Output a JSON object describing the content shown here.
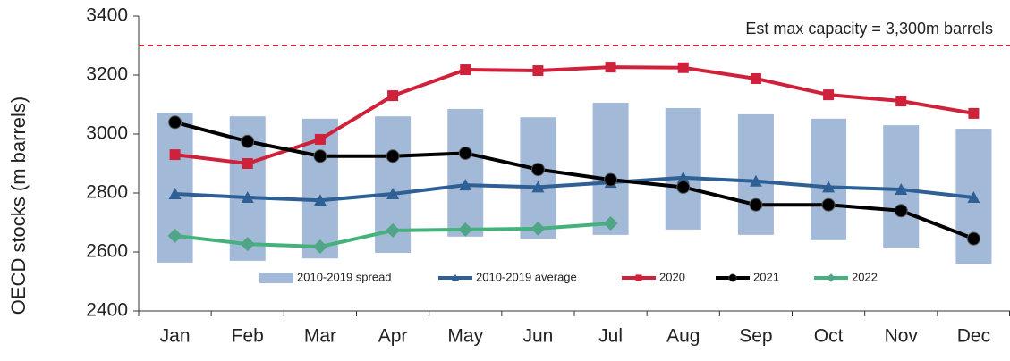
{
  "chart_data": {
    "type": "line",
    "y_label": "OECD stocks (m barrels)",
    "categories": [
      "Jan",
      "Feb",
      "Mar",
      "Apr",
      "May",
      "Jun",
      "Jul",
      "Aug",
      "Sep",
      "Oct",
      "Nov",
      "Dec"
    ],
    "ylim": [
      2400,
      3400
    ],
    "yticks": [
      2400,
      2600,
      2800,
      3000,
      3200,
      3400
    ],
    "grid": false,
    "legend": "bottom",
    "reference_line": {
      "value": 3300,
      "label": "Est max capacity = 3,300m barrels",
      "color": "#d0213a"
    },
    "series": [
      {
        "name": "2010-2019 spread",
        "type": "range",
        "color": "#a3b9d8",
        "low": [
          2564,
          2570,
          2578,
          2597,
          2652,
          2645,
          2658,
          2676,
          2658,
          2640,
          2615,
          2560
        ],
        "high": [
          3072,
          3060,
          3052,
          3060,
          3085,
          3057,
          3106,
          3088,
          3067,
          3052,
          3030,
          3018
        ]
      },
      {
        "name": "2010-2019 average",
        "marker": "triangle",
        "color": "#2e6096",
        "values": [
          2797,
          2785,
          2775,
          2797,
          2827,
          2820,
          2836,
          2852,
          2840,
          2820,
          2812,
          2785
        ]
      },
      {
        "name": "2020",
        "marker": "square",
        "color": "#d0213a",
        "values": [
          2930,
          2900,
          2982,
          3130,
          3218,
          3215,
          3227,
          3225,
          3188,
          3133,
          3112,
          3070
        ]
      },
      {
        "name": "2021",
        "marker": "circle",
        "color": "#000000",
        "values": [
          3040,
          2975,
          2925,
          2925,
          2935,
          2880,
          2845,
          2820,
          2760,
          2760,
          2740,
          2645
        ]
      },
      {
        "name": "2022",
        "marker": "diamond",
        "color": "#45b27c",
        "values": [
          2655,
          2627,
          2618,
          2673,
          2676,
          2679,
          2697,
          null,
          null,
          null,
          null,
          null
        ]
      }
    ]
  }
}
